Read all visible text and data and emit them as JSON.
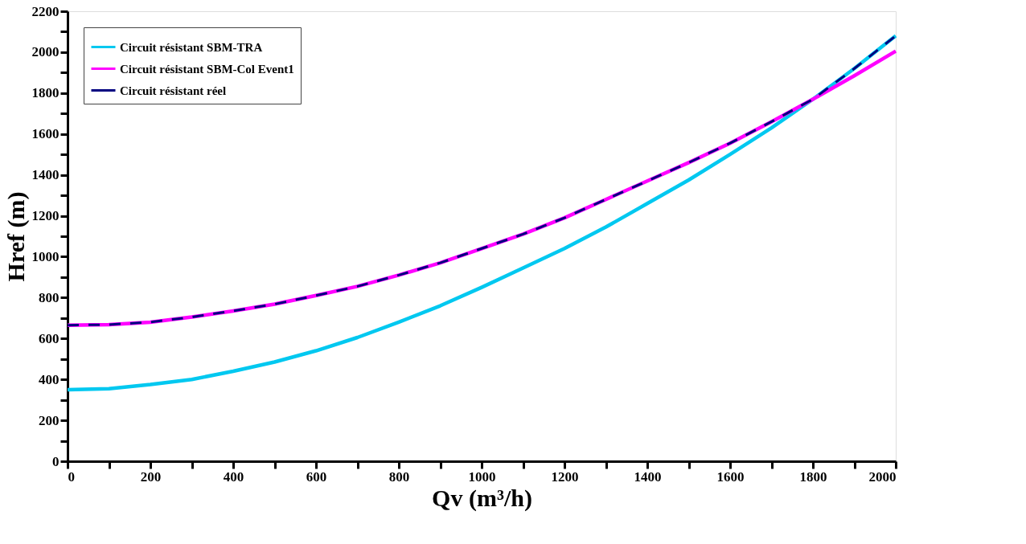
{
  "chart_data": {
    "type": "line",
    "xlabel": "Qv (m³/h)",
    "ylabel": "Href (m)",
    "x": [
      0,
      100,
      200,
      300,
      400,
      500,
      600,
      700,
      800,
      900,
      1000,
      1100,
      1200,
      1300,
      1400,
      1500,
      1600,
      1700,
      1800,
      1900,
      2000
    ],
    "series": [
      {
        "name": "Circuit résistant SBM-TRA",
        "color": "#00c8f0",
        "line_style": "solid",
        "values": [
          350,
          355,
          375,
          400,
          440,
          485,
          540,
          605,
          680,
          760,
          850,
          945,
          1040,
          1145,
          1260,
          1375,
          1500,
          1630,
          1770,
          1920,
          2080
        ]
      },
      {
        "name": "Circuit résistant SBM-Col Event1",
        "color": "#ff00ff",
        "line_style": "solid",
        "values": [
          665,
          668,
          680,
          705,
          735,
          768,
          810,
          855,
          910,
          970,
          1040,
          1110,
          1190,
          1280,
          1370,
          1460,
          1555,
          1660,
          1770,
          1885,
          2005
        ]
      },
      {
        "name": "Circuit résistant réel",
        "color": "#000080",
        "line_style": "dashed",
        "values": [
          665,
          668,
          680,
          705,
          735,
          768,
          810,
          855,
          910,
          970,
          1040,
          1110,
          1190,
          1280,
          1370,
          1460,
          1555,
          1660,
          1770,
          1920,
          2080
        ]
      }
    ],
    "xlim": [
      0,
      2000
    ],
    "ylim": [
      0,
      2200
    ],
    "xticks": [
      0,
      {
        "value": 100,
        "label": null
      },
      200,
      {
        "value": 300,
        "label": null
      },
      400,
      {
        "value": 500,
        "label": null
      },
      600,
      {
        "value": 700,
        "label": null
      },
      800,
      {
        "value": 900,
        "label": null
      },
      1000,
      {
        "value": 1100,
        "label": null
      },
      1200,
      {
        "value": 1300,
        "label": null
      },
      1400,
      {
        "value": 1500,
        "label": null
      },
      1600,
      {
        "value": 1700,
        "label": null
      },
      1800,
      {
        "value": 1900,
        "label": null
      },
      2000
    ],
    "yticks": [
      0,
      {
        "value": 100,
        "label": null
      },
      200,
      {
        "value": 300,
        "label": null
      },
      400,
      {
        "value": 500,
        "label": null
      },
      600,
      {
        "value": 700,
        "label": null
      },
      800,
      {
        "value": 900,
        "label": null
      },
      1000,
      {
        "value": 1100,
        "label": null
      },
      1200,
      {
        "value": 1300,
        "label": null
      },
      1400,
      {
        "value": 1500,
        "label": null
      },
      1600,
      {
        "value": 1700,
        "label": null
      },
      1800,
      {
        "value": 1900,
        "label": null
      },
      2000,
      {
        "value": 2100,
        "label": null
      },
      2200
    ],
    "grid": false,
    "legend": "top left",
    "marker": "none"
  }
}
